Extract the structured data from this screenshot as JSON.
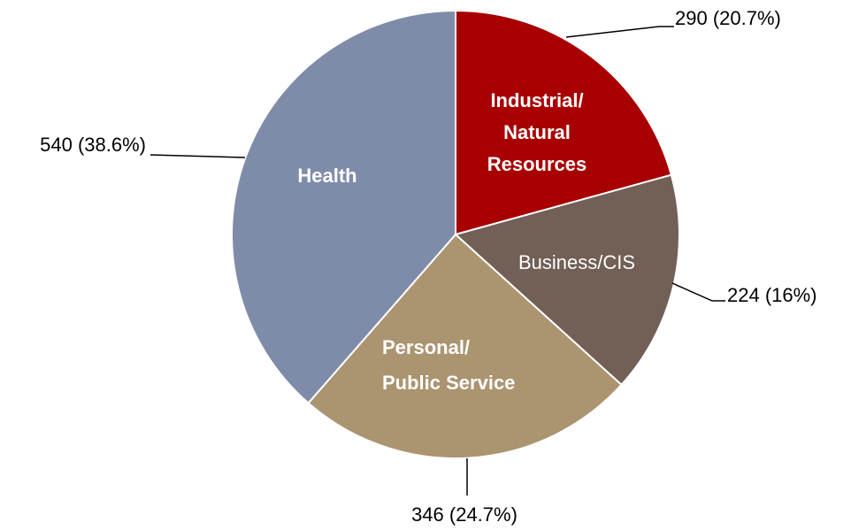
{
  "chart_data": {
    "type": "pie",
    "categories": [
      [
        "Industrial/",
        "Natural",
        "Resources"
      ],
      [
        "Business/CIS"
      ],
      [
        "Personal/",
        "Public Service"
      ],
      [
        "Health"
      ]
    ],
    "values": [
      290,
      224,
      346,
      540
    ],
    "value_labels": [
      "290 (20.7%)",
      "224 (16%)",
      "346 (24.7%)",
      "540 (38.6%)"
    ],
    "colors": [
      "#a80000",
      "#725f55",
      "#ab9470",
      "#7f8ca9"
    ]
  }
}
